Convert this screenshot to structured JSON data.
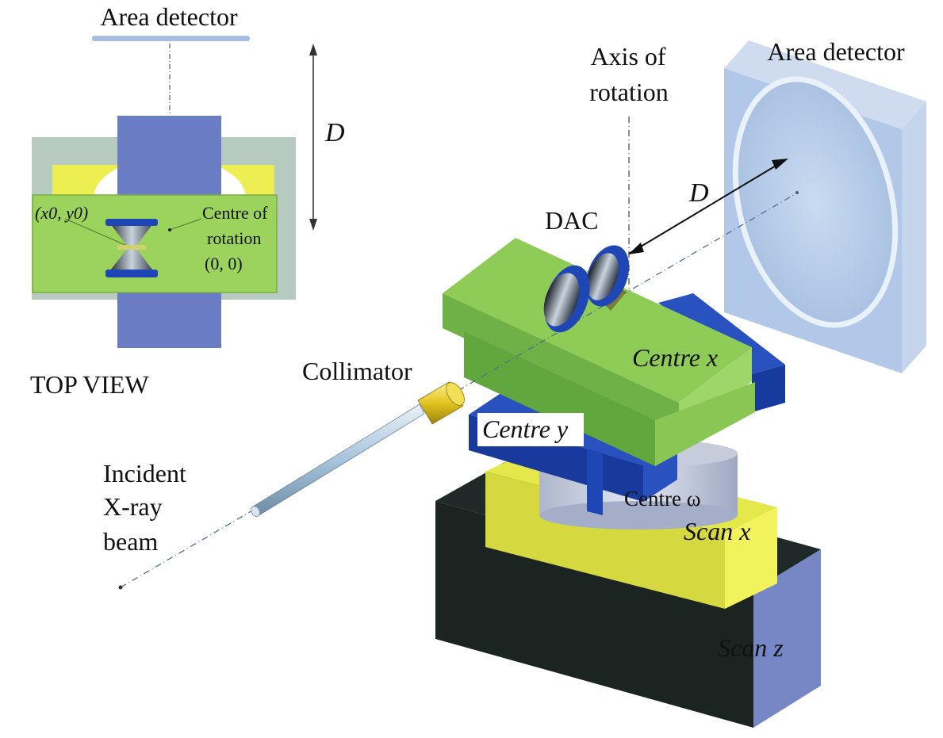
{
  "top_view": {
    "area_detector": "Area detector",
    "distance": "D",
    "x0y0": "(x0, y0)",
    "centre_of_rotation_line1": "Centre of",
    "centre_of_rotation_line2": "rotation",
    "centre_of_rotation_line3": "(0, 0)",
    "caption": "TOP VIEW"
  },
  "main_view": {
    "axis_line1": "Axis of",
    "axis_line2": "rotation",
    "area_detector": "Area detector",
    "distance": "D",
    "dac": "DAC",
    "collimator": "Collimator",
    "incident_line1": "Incident",
    "incident_line2": "X-ray",
    "incident_line3": "beam",
    "centre_x": "Centre x",
    "centre_y": "Centre y",
    "centre_omega": "Centre ω",
    "scan_x": "Scan x",
    "scan_z": "Scan z"
  },
  "colors": {
    "green": "#8cc850",
    "blue": "#1e46b4",
    "yellow": "#e8ea3a",
    "dark": "#1f2b2a",
    "detector": "#b6cbe8",
    "beam": "#6c8ca8"
  }
}
